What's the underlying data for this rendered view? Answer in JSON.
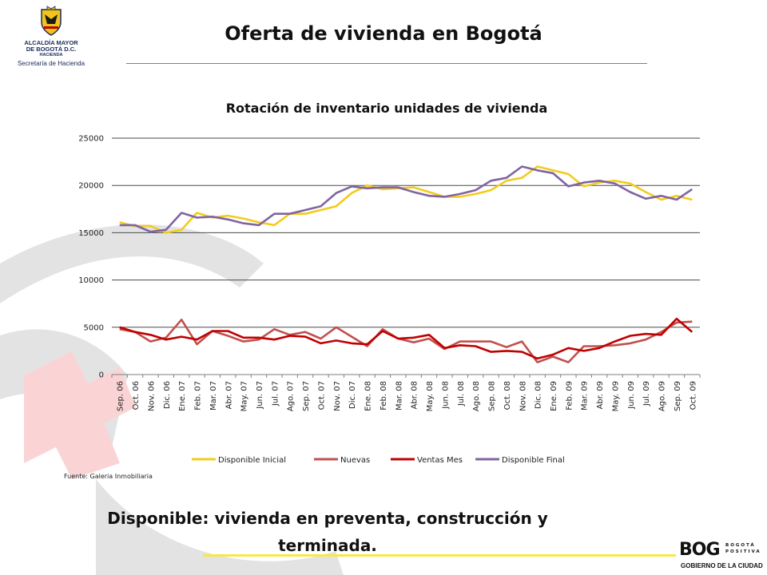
{
  "header": {
    "org_line1": "ALCALDÍA MAYOR",
    "org_line2": "DE BOGOTÁ D.C.",
    "org_line3": "HACIENDA",
    "org_line4": "Secretaría de Hacienda",
    "title": "Oferta de vivienda en Bogotá"
  },
  "colors": {
    "disponible_inicial": "#f2cc1c",
    "nuevas": "#c0504d",
    "ventas_mes": "#c00000",
    "disponible_final": "#8064a2",
    "gridline": "#4a4a4a",
    "deco_gray": "#e3e3e3",
    "deco_pink": "#fad4d4",
    "accent_yellow": "#f6e84a"
  },
  "chart_data": {
    "type": "line",
    "title": "Rotación de inventario unidades de vivienda",
    "xlabel": "",
    "ylabel": "",
    "ylim": [
      0,
      25000
    ],
    "yticks": [
      "0",
      "5000",
      "10000",
      "15000",
      "20000",
      "25000"
    ],
    "grid": true,
    "legend_position": "bottom",
    "categories": [
      "Sep. 06",
      "Oct. 06",
      "Nov. 06",
      "Dic. 06",
      "Ene. 07",
      "Feb. 07",
      "Mar. 07",
      "Abr. 07",
      "May. 07",
      "Jun. 07",
      "Jul. 07",
      "Ago. 07",
      "Sep. 07",
      "Oct. 07",
      "Nov. 07",
      "Dic. 07",
      "Ene. 08",
      "Feb. 08",
      "Mar. 08",
      "Abr. 08",
      "May. 08",
      "Jun. 08",
      "Jul. 08",
      "Ago. 08",
      "Sep. 08",
      "Oct. 08",
      "Nov. 08",
      "Dic. 08",
      "Ene. 09",
      "Feb. 09",
      "Mar. 09",
      "Abr. 09",
      "May. 09",
      "Jun. 09",
      "Jul. 09",
      "Ago. 09",
      "Sep. 09",
      "Oct. 09"
    ],
    "series": [
      {
        "name": "Disponible Inicial",
        "color_key": "disponible_inicial",
        "values": [
          16100,
          15700,
          15700,
          15000,
          15300,
          17100,
          16600,
          16800,
          16500,
          16100,
          15800,
          17000,
          17000,
          17400,
          17800,
          19200,
          20000,
          19600,
          19700,
          19800,
          19300,
          18800,
          18800,
          19100,
          19500,
          20500,
          20800,
          22000,
          21600,
          21200,
          19900,
          20300,
          20500,
          20200,
          19300,
          18500,
          18900,
          18500
        ]
      },
      {
        "name": "Nuevas",
        "color_key": "nuevas",
        "values": [
          4800,
          4500,
          3500,
          3900,
          5800,
          3200,
          4600,
          4100,
          3500,
          3700,
          4800,
          4200,
          4500,
          3800,
          5000,
          4000,
          3000,
          4800,
          3800,
          3400,
          3800,
          2700,
          3500,
          3500,
          3500,
          2900,
          3500,
          1300,
          1900,
          1300,
          3000,
          3000,
          3100,
          3300,
          3700,
          4500,
          5500,
          5600
        ]
      },
      {
        "name": "Ventas Mes",
        "color_key": "ventas_mes",
        "values": [
          5000,
          4500,
          4200,
          3700,
          4000,
          3700,
          4600,
          4600,
          3900,
          3900,
          3700,
          4100,
          4000,
          3300,
          3600,
          3300,
          3200,
          4600,
          3800,
          3900,
          4200,
          2800,
          3100,
          3000,
          2400,
          2500,
          2400,
          1700,
          2100,
          2800,
          2500,
          2800,
          3500,
          4100,
          4300,
          4200,
          5900,
          4500
        ]
      },
      {
        "name": "Disponible Final",
        "color_key": "disponible_final",
        "values": [
          15800,
          15800,
          15100,
          15300,
          17100,
          16600,
          16700,
          16400,
          16000,
          15800,
          17000,
          17000,
          17400,
          17800,
          19200,
          19900,
          19700,
          19800,
          19800,
          19300,
          18900,
          18800,
          19100,
          19500,
          20500,
          20800,
          22000,
          21600,
          21300,
          19900,
          20300,
          20500,
          20200,
          19300,
          18600,
          18900,
          18500,
          19600
        ]
      }
    ]
  },
  "footer": {
    "source": "Fuente: Galeria Inmobiliaria",
    "note_line1": "Disponible: vivienda en preventa, construcción y",
    "note_line2": "terminada.",
    "bog_main": "BOG",
    "bog_side_line1": "BOGOTÁ",
    "bog_side_line2": "POSITIVA",
    "bog_sub": "GOBIERNO DE LA CIUDAD"
  }
}
